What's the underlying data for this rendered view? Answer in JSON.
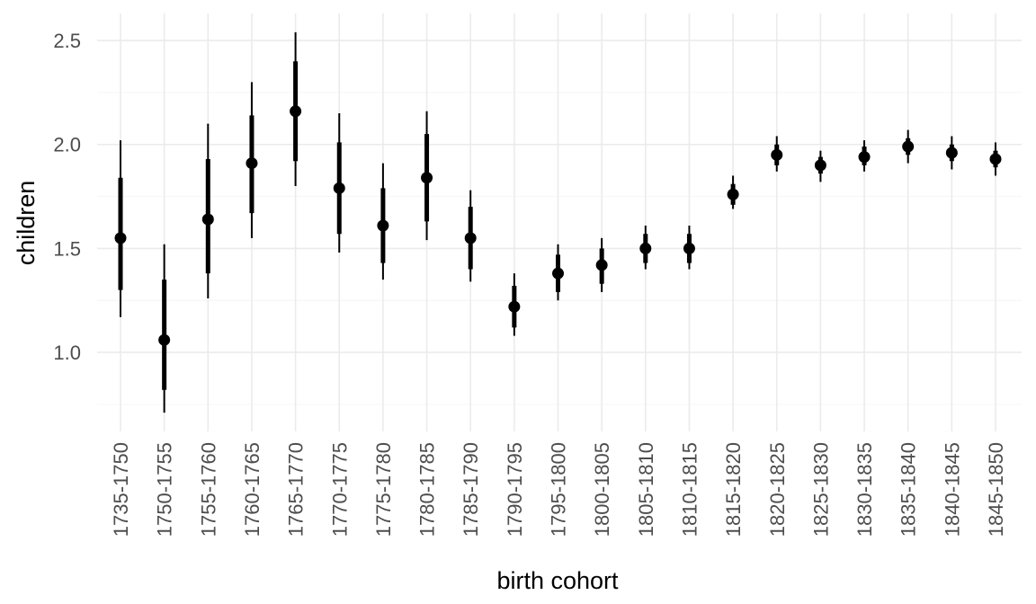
{
  "chart_data": {
    "type": "pointrange",
    "title": "",
    "xlabel": "birth cohort",
    "ylabel": "children",
    "ylim": [
      0.62,
      2.63
    ],
    "y_ticks": [
      1.0,
      1.5,
      2.0,
      2.5
    ],
    "y_tick_labels": [
      "1.0",
      "1.5",
      "2.0",
      "2.5"
    ],
    "grid": true,
    "legend": "none",
    "colors": {
      "marks": "#000000",
      "grid": "#ebebeb",
      "tick_text": "#4d4d4d"
    },
    "categories": [
      "1735-1750",
      "1750-1755",
      "1755-1760",
      "1760-1765",
      "1765-1770",
      "1770-1775",
      "1775-1780",
      "1780-1785",
      "1785-1790",
      "1790-1795",
      "1795-1800",
      "1800-1805",
      "1805-1810",
      "1810-1815",
      "1815-1820",
      "1820-1825",
      "1825-1830",
      "1830-1835",
      "1835-1840",
      "1840-1845",
      "1845-1850"
    ],
    "estimate": [
      1.55,
      1.06,
      1.64,
      1.91,
      2.16,
      1.79,
      1.61,
      1.84,
      1.55,
      1.22,
      1.38,
      1.42,
      1.5,
      1.5,
      1.76,
      1.95,
      1.9,
      1.94,
      1.99,
      1.96,
      1.93
    ],
    "inner_low": [
      1.3,
      0.82,
      1.38,
      1.67,
      1.92,
      1.57,
      1.43,
      1.63,
      1.4,
      1.12,
      1.29,
      1.33,
      1.43,
      1.43,
      1.71,
      1.9,
      1.86,
      1.9,
      1.95,
      1.92,
      1.89
    ],
    "inner_high": [
      1.84,
      1.35,
      1.93,
      2.14,
      2.4,
      2.01,
      1.79,
      2.05,
      1.7,
      1.32,
      1.47,
      1.5,
      1.57,
      1.57,
      1.81,
      2.0,
      1.94,
      1.99,
      2.03,
      2.0,
      1.97
    ],
    "outer_low": [
      1.17,
      0.71,
      1.26,
      1.55,
      1.8,
      1.48,
      1.35,
      1.54,
      1.34,
      1.08,
      1.25,
      1.29,
      1.4,
      1.4,
      1.69,
      1.87,
      1.82,
      1.87,
      1.91,
      1.88,
      1.85
    ],
    "outer_high": [
      2.02,
      1.52,
      2.1,
      2.3,
      2.54,
      2.15,
      1.91,
      2.16,
      1.78,
      1.38,
      1.52,
      1.55,
      1.61,
      1.61,
      1.85,
      2.04,
      1.97,
      2.02,
      2.07,
      2.04,
      2.01
    ]
  }
}
